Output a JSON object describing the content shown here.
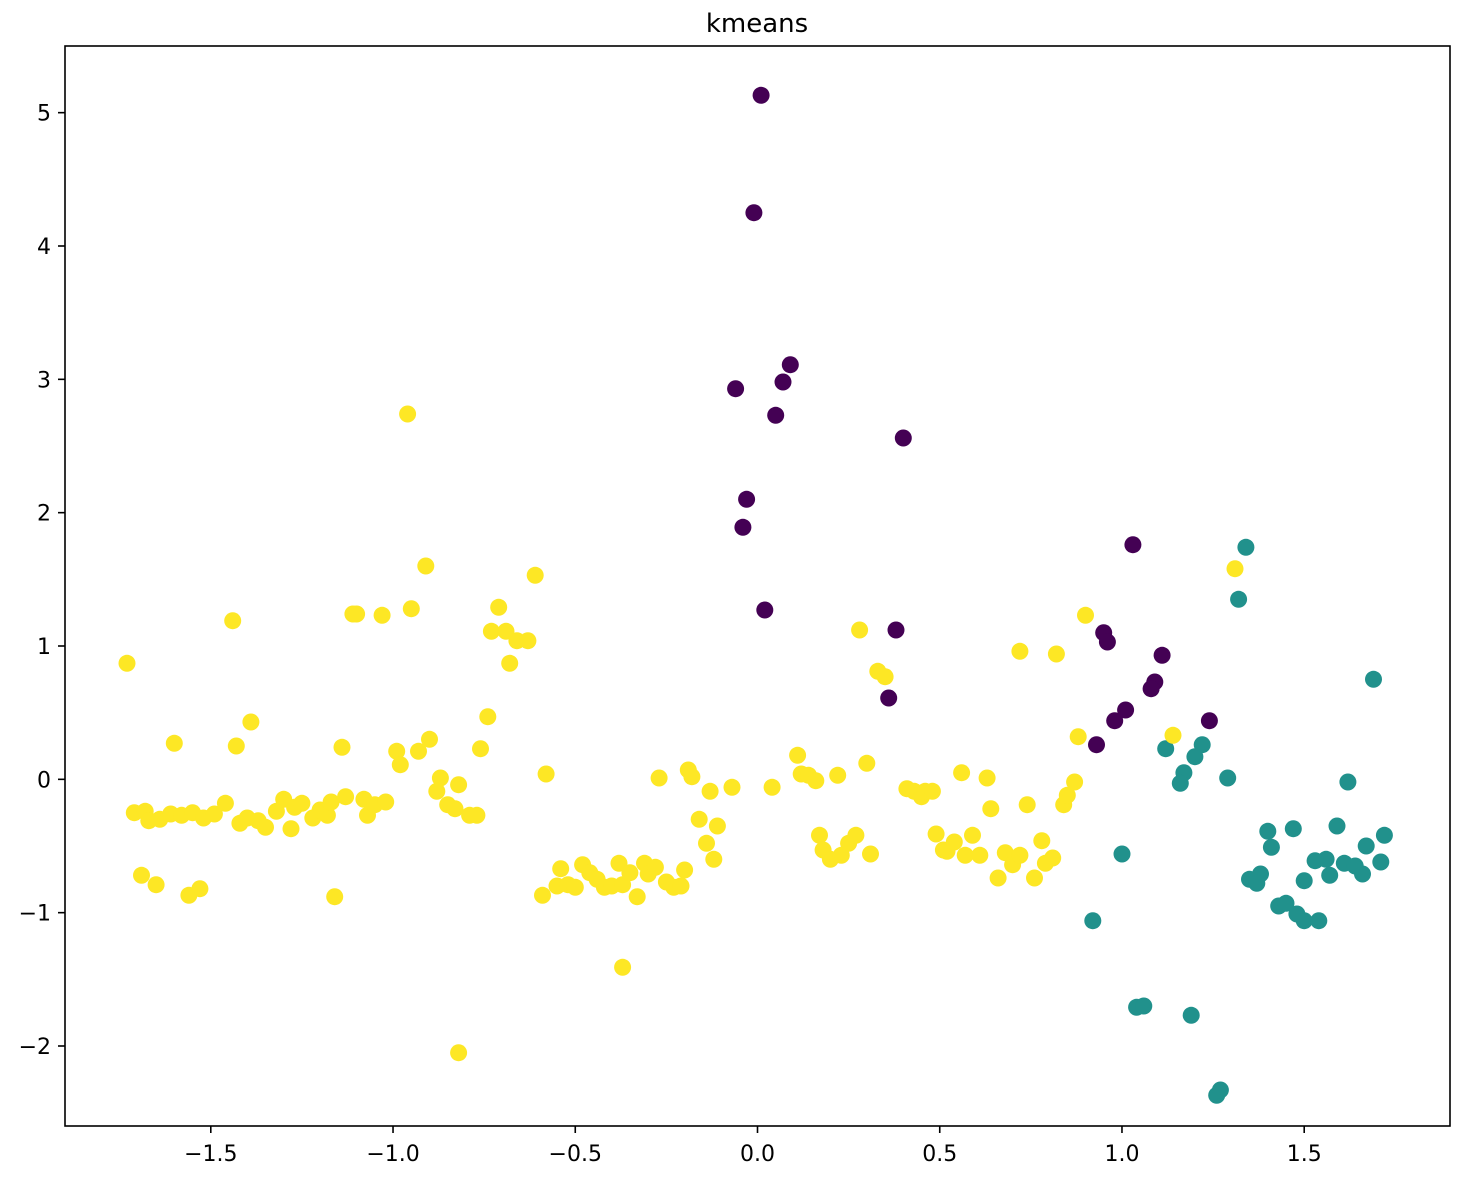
{
  "chart_data": {
    "type": "scatter",
    "title": "kmeans",
    "xlabel": "",
    "ylabel": "",
    "xlim": [
      -1.9,
      1.9
    ],
    "ylim": [
      -2.6,
      5.5
    ],
    "grid": false,
    "legend": "none",
    "x_ticks": [
      -1.5,
      -1.0,
      -0.5,
      0.0,
      0.5,
      1.0,
      1.5
    ],
    "x_tick_labels": [
      "−1.5",
      "−1.0",
      "−0.5",
      "0.0",
      "0.5",
      "1.0",
      "1.5"
    ],
    "y_ticks": [
      -2,
      -1,
      0,
      1,
      2,
      3,
      4,
      5
    ],
    "y_tick_labels": [
      "−2",
      "−1",
      "0",
      "1",
      "2",
      "3",
      "4",
      "5"
    ],
    "cluster_colors": {
      "purple": "#440154",
      "teal": "#21918c",
      "yellow": "#fde725"
    },
    "series": [
      {
        "cluster": "purple",
        "color": "#440154",
        "points": [
          [
            0.01,
            5.13
          ],
          [
            -0.01,
            4.25
          ],
          [
            0.09,
            3.11
          ],
          [
            0.07,
            2.98
          ],
          [
            -0.06,
            2.93
          ],
          [
            0.05,
            2.73
          ],
          [
            0.4,
            2.56
          ],
          [
            -0.03,
            2.1
          ],
          [
            -0.04,
            1.89
          ],
          [
            0.02,
            1.27
          ],
          [
            0.38,
            1.12
          ],
          [
            0.36,
            0.61
          ],
          [
            1.03,
            1.76
          ],
          [
            0.95,
            1.1
          ],
          [
            0.96,
            1.03
          ],
          [
            1.11,
            0.93
          ],
          [
            1.09,
            0.73
          ],
          [
            1.08,
            0.68
          ],
          [
            1.01,
            0.52
          ],
          [
            0.98,
            0.44
          ],
          [
            1.24,
            0.44
          ],
          [
            0.93,
            0.26
          ]
        ]
      },
      {
        "cluster": "teal",
        "color": "#21918c",
        "points": [
          [
            1.34,
            1.74
          ],
          [
            1.32,
            1.35
          ],
          [
            1.69,
            0.75
          ],
          [
            1.12,
            0.23
          ],
          [
            1.22,
            0.26
          ],
          [
            1.2,
            0.17
          ],
          [
            1.17,
            0.05
          ],
          [
            1.16,
            -0.03
          ],
          [
            1.29,
            0.01
          ],
          [
            1.62,
            -0.02
          ],
          [
            1.59,
            -0.35
          ],
          [
            1.4,
            -0.39
          ],
          [
            1.47,
            -0.37
          ],
          [
            1.41,
            -0.51
          ],
          [
            1.72,
            -0.42
          ],
          [
            1.67,
            -0.5
          ],
          [
            1.56,
            -0.6
          ],
          [
            1.53,
            -0.61
          ],
          [
            1.61,
            -0.63
          ],
          [
            1.64,
            -0.65
          ],
          [
            1.71,
            -0.62
          ],
          [
            1.66,
            -0.71
          ],
          [
            1.57,
            -0.72
          ],
          [
            1.38,
            -0.71
          ],
          [
            1.35,
            -0.75
          ],
          [
            1.37,
            -0.78
          ],
          [
            1.5,
            -0.76
          ],
          [
            1.0,
            -0.56
          ],
          [
            1.43,
            -0.95
          ],
          [
            1.45,
            -0.93
          ],
          [
            1.48,
            -1.01
          ],
          [
            1.5,
            -1.06
          ],
          [
            1.54,
            -1.06
          ],
          [
            0.92,
            -1.06
          ],
          [
            1.04,
            -1.71
          ],
          [
            1.06,
            -1.7
          ],
          [
            1.19,
            -1.77
          ],
          [
            1.26,
            -2.37
          ],
          [
            1.27,
            -2.33
          ]
        ]
      },
      {
        "cluster": "yellow",
        "color": "#fde725",
        "points": [
          [
            -0.96,
            2.74
          ],
          [
            -0.91,
            1.6
          ],
          [
            -0.61,
            1.53
          ],
          [
            -0.95,
            1.28
          ],
          [
            -1.1,
            1.24
          ],
          [
            -1.11,
            1.24
          ],
          [
            -1.03,
            1.23
          ],
          [
            -1.44,
            1.19
          ],
          [
            -0.71,
            1.29
          ],
          [
            -0.73,
            1.11
          ],
          [
            -0.69,
            1.11
          ],
          [
            -0.66,
            1.04
          ],
          [
            -0.63,
            1.04
          ],
          [
            -0.68,
            0.87
          ],
          [
            -1.73,
            0.87
          ],
          [
            -0.74,
            0.47
          ],
          [
            -1.39,
            0.43
          ],
          [
            -0.9,
            0.3
          ],
          [
            -1.6,
            0.27
          ],
          [
            -1.43,
            0.25
          ],
          [
            -1.14,
            0.24
          ],
          [
            -0.76,
            0.23
          ],
          [
            -0.99,
            0.21
          ],
          [
            -0.93,
            0.21
          ],
          [
            -0.98,
            0.11
          ],
          [
            -0.87,
            0.01
          ],
          [
            -0.82,
            -0.04
          ],
          [
            -0.88,
            -0.09
          ],
          [
            -0.58,
            0.04
          ],
          [
            -1.71,
            -0.25
          ],
          [
            -1.68,
            -0.24
          ],
          [
            -1.67,
            -0.31
          ],
          [
            -1.64,
            -0.3
          ],
          [
            -1.61,
            -0.26
          ],
          [
            -1.58,
            -0.27
          ],
          [
            -1.55,
            -0.25
          ],
          [
            -1.52,
            -0.29
          ],
          [
            -1.49,
            -0.26
          ],
          [
            -1.46,
            -0.18
          ],
          [
            -1.42,
            -0.33
          ],
          [
            -1.4,
            -0.29
          ],
          [
            -1.37,
            -0.31
          ],
          [
            -1.35,
            -0.36
          ],
          [
            -1.32,
            -0.24
          ],
          [
            -1.3,
            -0.15
          ],
          [
            -1.28,
            -0.37
          ],
          [
            -1.27,
            -0.21
          ],
          [
            -1.25,
            -0.18
          ],
          [
            -1.22,
            -0.29
          ],
          [
            -1.2,
            -0.23
          ],
          [
            -1.18,
            -0.27
          ],
          [
            -1.17,
            -0.17
          ],
          [
            -1.13,
            -0.13
          ],
          [
            -1.08,
            -0.15
          ],
          [
            -1.07,
            -0.27
          ],
          [
            -1.05,
            -0.19
          ],
          [
            -1.02,
            -0.17
          ],
          [
            -0.85,
            -0.19
          ],
          [
            -0.83,
            -0.22
          ],
          [
            -0.79,
            -0.27
          ],
          [
            -0.77,
            -0.27
          ],
          [
            -1.69,
            -0.72
          ],
          [
            -1.65,
            -0.79
          ],
          [
            -1.56,
            -0.87
          ],
          [
            -1.53,
            -0.82
          ],
          [
            -1.16,
            -0.88
          ],
          [
            -0.59,
            -0.87
          ],
          [
            -0.55,
            -0.8
          ],
          [
            -0.54,
            -0.67
          ],
          [
            -0.52,
            -0.79
          ],
          [
            -0.5,
            -0.81
          ],
          [
            -0.48,
            -0.64
          ],
          [
            -0.46,
            -0.7
          ],
          [
            -0.44,
            -0.75
          ],
          [
            -0.42,
            -0.81
          ],
          [
            -0.4,
            -0.8
          ],
          [
            -0.38,
            -0.63
          ],
          [
            -0.37,
            -0.79
          ],
          [
            -0.35,
            -0.7
          ],
          [
            -0.33,
            -0.88
          ],
          [
            -0.31,
            -0.63
          ],
          [
            -0.3,
            -0.71
          ],
          [
            -0.28,
            -0.66
          ],
          [
            -0.25,
            -0.77
          ],
          [
            -0.23,
            -0.81
          ],
          [
            -0.21,
            -0.8
          ],
          [
            -0.2,
            -0.68
          ],
          [
            -0.37,
            -1.41
          ],
          [
            -0.82,
            -2.05
          ],
          [
            -0.27,
            0.01
          ],
          [
            -0.19,
            0.07
          ],
          [
            -0.18,
            0.02
          ],
          [
            -0.13,
            -0.09
          ],
          [
            -0.07,
            -0.06
          ],
          [
            -0.16,
            -0.3
          ],
          [
            -0.11,
            -0.35
          ],
          [
            -0.14,
            -0.48
          ],
          [
            -0.12,
            -0.6
          ],
          [
            0.04,
            -0.06
          ],
          [
            0.11,
            0.18
          ],
          [
            0.12,
            0.04
          ],
          [
            0.14,
            0.03
          ],
          [
            0.16,
            -0.01
          ],
          [
            0.22,
            0.03
          ],
          [
            0.17,
            -0.42
          ],
          [
            0.18,
            -0.53
          ],
          [
            0.2,
            -0.6
          ],
          [
            0.23,
            -0.57
          ],
          [
            0.25,
            -0.48
          ],
          [
            0.27,
            -0.42
          ],
          [
            0.31,
            -0.56
          ],
          [
            0.28,
            1.12
          ],
          [
            0.33,
            0.81
          ],
          [
            0.35,
            0.77
          ],
          [
            0.3,
            0.12
          ],
          [
            0.41,
            -0.07
          ],
          [
            0.43,
            -0.09
          ],
          [
            0.45,
            -0.13
          ],
          [
            0.46,
            -0.09
          ],
          [
            0.48,
            -0.09
          ],
          [
            0.49,
            -0.41
          ],
          [
            0.51,
            -0.53
          ],
          [
            0.52,
            -0.54
          ],
          [
            0.54,
            -0.47
          ],
          [
            0.56,
            0.05
          ],
          [
            0.57,
            -0.57
          ],
          [
            0.59,
            -0.42
          ],
          [
            0.61,
            -0.57
          ],
          [
            0.63,
            0.01
          ],
          [
            0.64,
            -0.22
          ],
          [
            0.66,
            -0.74
          ],
          [
            0.68,
            -0.55
          ],
          [
            0.7,
            -0.64
          ],
          [
            0.72,
            -0.57
          ],
          [
            0.72,
            0.96
          ],
          [
            0.74,
            -0.19
          ],
          [
            0.76,
            -0.74
          ],
          [
            0.78,
            -0.46
          ],
          [
            0.79,
            -0.63
          ],
          [
            0.81,
            -0.59
          ],
          [
            0.82,
            0.94
          ],
          [
            0.84,
            -0.19
          ],
          [
            0.85,
            -0.12
          ],
          [
            0.87,
            -0.02
          ],
          [
            0.88,
            0.32
          ],
          [
            0.9,
            1.23
          ],
          [
            1.14,
            0.33
          ],
          [
            1.31,
            1.58
          ]
        ]
      }
    ]
  }
}
